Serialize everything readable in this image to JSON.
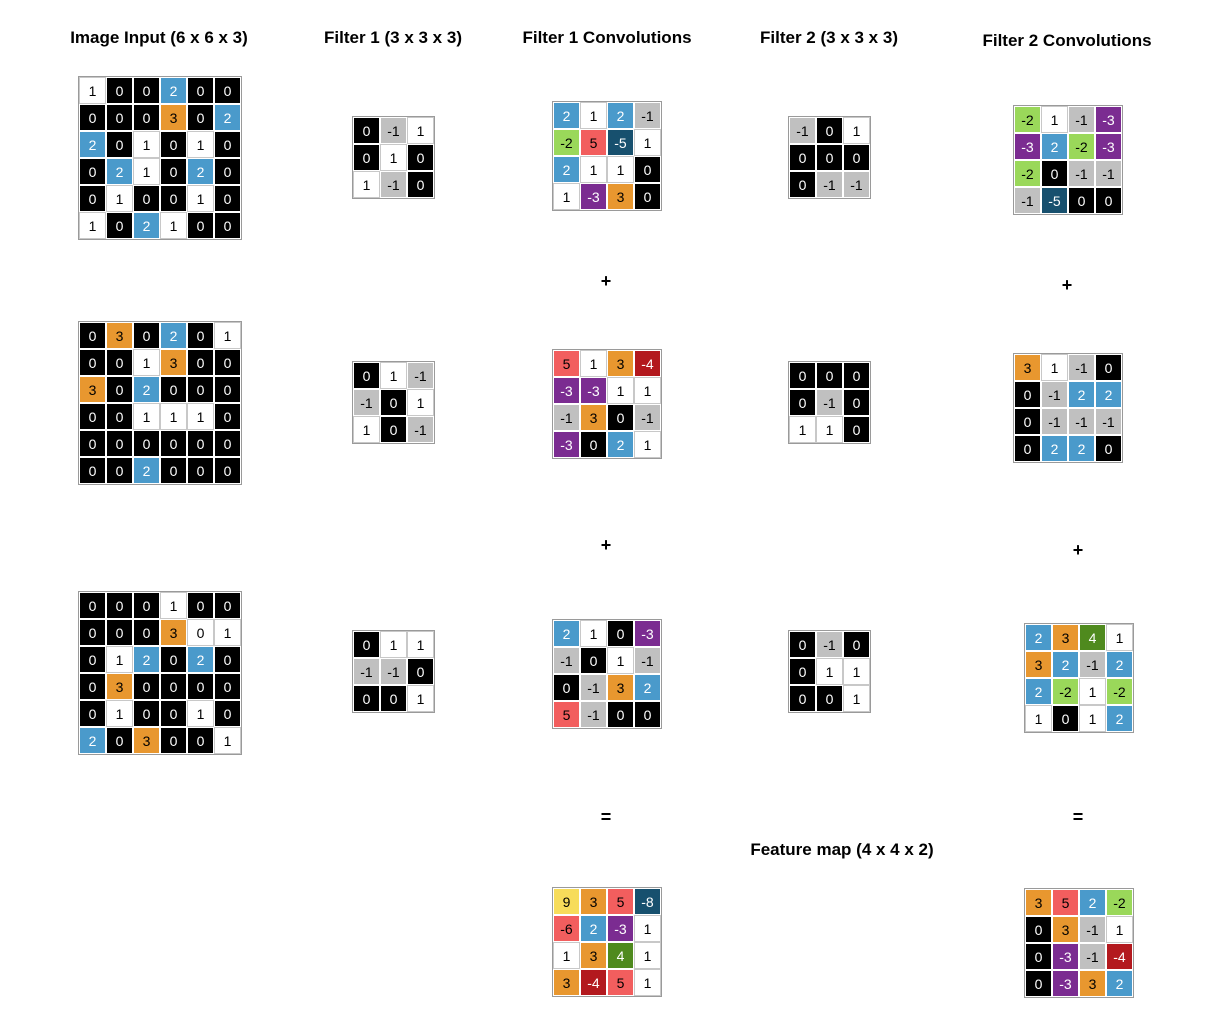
{
  "titles": {
    "input": "Image Input (6 x 6 x 3)",
    "filter1": "Filter 1 (3 x 3 x 3)",
    "conv1": "Filter 1 Convolutions",
    "filter2": "Filter 2 (3 x 3 x 3)",
    "conv2": "Filter 2 Convolutions",
    "feature": "Feature map (4 x 4 x 2)"
  },
  "operators": {
    "plus": "+",
    "equals": "="
  },
  "palette": {
    "black": "#000000",
    "white": "#ffffff",
    "gray": "#c0c0c0",
    "blue": "#4a9acb",
    "orange": "#e8972f",
    "purple": "#7b2c91",
    "lime": "#9ad85a",
    "red": "#f25e5e",
    "navy": "#17506e",
    "darkred": "#b3191e",
    "green": "#4f8a1e",
    "yellow": "#f7dc5a"
  },
  "matrices": {
    "input1": [
      [
        "1",
        "0",
        "0",
        "2",
        "0",
        "0"
      ],
      [
        "0",
        "0",
        "0",
        "3",
        "0",
        "2"
      ],
      [
        "2",
        "0",
        "1",
        "0",
        "1",
        "0"
      ],
      [
        "0",
        "2",
        "1",
        "0",
        "2",
        "0"
      ],
      [
        "0",
        "1",
        "0",
        "0",
        "1",
        "0"
      ],
      [
        "1",
        "0",
        "2",
        "1",
        "0",
        "0"
      ]
    ],
    "input2": [
      [
        "0",
        "3",
        "0",
        "2",
        "0",
        "1"
      ],
      [
        "0",
        "0",
        "1",
        "3",
        "0",
        "0"
      ],
      [
        "3",
        "0",
        "2",
        "0",
        "0",
        "0"
      ],
      [
        "0",
        "0",
        "1",
        "1",
        "1",
        "0"
      ],
      [
        "0",
        "0",
        "0",
        "0",
        "0",
        "0"
      ],
      [
        "0",
        "0",
        "2",
        "0",
        "0",
        "0"
      ]
    ],
    "input3": [
      [
        "0",
        "0",
        "0",
        "1",
        "0",
        "0"
      ],
      [
        "0",
        "0",
        "0",
        "3",
        "0",
        "1"
      ],
      [
        "0",
        "1",
        "2",
        "0",
        "2",
        "0"
      ],
      [
        "0",
        "3",
        "0",
        "0",
        "0",
        "0"
      ],
      [
        "0",
        "1",
        "0",
        "0",
        "1",
        "0"
      ],
      [
        "2",
        "0",
        "3",
        "0",
        "0",
        "1"
      ]
    ],
    "filter1a": [
      [
        "0",
        "-1",
        "1"
      ],
      [
        "0",
        "1",
        "0"
      ],
      [
        "1",
        "-1",
        "0"
      ]
    ],
    "filter1b": [
      [
        "0",
        "1",
        "-1"
      ],
      [
        "-1",
        "0",
        "1"
      ],
      [
        "1",
        "0",
        "-1"
      ]
    ],
    "filter1c": [
      [
        "0",
        "1",
        "1"
      ],
      [
        "-1",
        "-1",
        "0"
      ],
      [
        "0",
        "0",
        "1"
      ]
    ],
    "conv1a": [
      [
        "2",
        "1",
        "2",
        "-1"
      ],
      [
        "-2",
        "5",
        "-5",
        "1"
      ],
      [
        "2",
        "1",
        "1",
        "0"
      ],
      [
        "1",
        "-3",
        "3",
        "0"
      ]
    ],
    "conv1b": [
      [
        "5",
        "1",
        "3",
        "-4"
      ],
      [
        "-3",
        "-3",
        "1",
        "1"
      ],
      [
        "-1",
        "3",
        "0",
        "-1"
      ],
      [
        "-3",
        "0",
        "2",
        "1"
      ]
    ],
    "conv1c": [
      [
        "2",
        "1",
        "0",
        "-3"
      ],
      [
        "-1",
        "0",
        "1",
        "-1"
      ],
      [
        "0",
        "-1",
        "3",
        "2"
      ],
      [
        "5",
        "-1",
        "0",
        "0"
      ]
    ],
    "feature1": [
      [
        "9",
        "3",
        "5",
        "-8"
      ],
      [
        "-6",
        "2",
        "-3",
        "1"
      ],
      [
        "1",
        "3",
        "4",
        "1"
      ],
      [
        "3",
        "-4",
        "5",
        "1"
      ]
    ],
    "filter2a": [
      [
        "-1",
        "0",
        "1"
      ],
      [
        "0",
        "0",
        "0"
      ],
      [
        "0",
        "-1",
        "-1"
      ]
    ],
    "filter2b": [
      [
        "0",
        "0",
        "0"
      ],
      [
        "0",
        "-1",
        "0"
      ],
      [
        "1",
        "1",
        "0"
      ]
    ],
    "filter2c": [
      [
        "0",
        "-1",
        "0"
      ],
      [
        "0",
        "1",
        "1"
      ],
      [
        "0",
        "0",
        "1"
      ]
    ],
    "conv2a": [
      [
        "-2",
        "1",
        "-1",
        "-3"
      ],
      [
        "-3",
        "2",
        "-2",
        "-3"
      ],
      [
        "-2",
        "0",
        "-1",
        "-1"
      ],
      [
        "-1",
        "-5",
        "0",
        "0"
      ]
    ],
    "conv2b": [
      [
        "3",
        "1",
        "-1",
        "0"
      ],
      [
        "0",
        "-1",
        "2",
        "2"
      ],
      [
        "0",
        "-1",
        "-1",
        "-1"
      ],
      [
        "0",
        "2",
        "2",
        "0"
      ]
    ],
    "conv2c": [
      [
        "2",
        "3",
        "4",
        "1"
      ],
      [
        "3",
        "2",
        "-1",
        "2"
      ],
      [
        "2",
        "-2",
        "1",
        "-2"
      ],
      [
        "1",
        "0",
        "1",
        "2"
      ]
    ],
    "feature2": [
      [
        "3",
        "5",
        "2",
        "-2"
      ],
      [
        "0",
        "3",
        "-1",
        "1"
      ],
      [
        "0",
        "-3",
        "-1",
        "-4"
      ],
      [
        "0",
        "-3",
        "3",
        "2"
      ]
    ]
  },
  "cell_colors": {
    "input1": [
      [
        "white",
        "black",
        "black",
        "blue",
        "black",
        "black"
      ],
      [
        "black",
        "black",
        "black",
        "orange",
        "black",
        "blue"
      ],
      [
        "blue",
        "black",
        "white",
        "black",
        "white",
        "black"
      ],
      [
        "black",
        "blue",
        "white",
        "black",
        "blue",
        "black"
      ],
      [
        "black",
        "white",
        "black",
        "black",
        "white",
        "black"
      ],
      [
        "white",
        "black",
        "blue",
        "white",
        "black",
        "black"
      ]
    ],
    "input2": [
      [
        "black",
        "orange",
        "black",
        "blue",
        "black",
        "white"
      ],
      [
        "black",
        "black",
        "white",
        "orange",
        "black",
        "black"
      ],
      [
        "orange",
        "black",
        "blue",
        "black",
        "black",
        "black"
      ],
      [
        "black",
        "black",
        "white",
        "white",
        "white",
        "black"
      ],
      [
        "black",
        "black",
        "black",
        "black",
        "black",
        "black"
      ],
      [
        "black",
        "black",
        "blue",
        "black",
        "black",
        "black"
      ]
    ],
    "input3": [
      [
        "black",
        "black",
        "black",
        "white",
        "black",
        "black"
      ],
      [
        "black",
        "black",
        "black",
        "orange",
        "white",
        "white"
      ],
      [
        "black",
        "white",
        "blue",
        "black",
        "blue",
        "black"
      ],
      [
        "black",
        "orange",
        "black",
        "black",
        "black",
        "black"
      ],
      [
        "black",
        "white",
        "black",
        "black",
        "white",
        "black"
      ],
      [
        "blue",
        "black",
        "orange",
        "black",
        "black",
        "white"
      ]
    ],
    "filter1a": [
      [
        "black",
        "gray",
        "white"
      ],
      [
        "black",
        "white",
        "black"
      ],
      [
        "white",
        "gray",
        "black"
      ]
    ],
    "filter1b": [
      [
        "black",
        "white",
        "gray"
      ],
      [
        "gray",
        "black",
        "white"
      ],
      [
        "white",
        "black",
        "gray"
      ]
    ],
    "filter1c": [
      [
        "black",
        "white",
        "white"
      ],
      [
        "gray",
        "gray",
        "black"
      ],
      [
        "black",
        "black",
        "white"
      ]
    ],
    "conv1a": [
      [
        "blue",
        "white",
        "blue",
        "gray"
      ],
      [
        "lime",
        "red",
        "navy",
        "white"
      ],
      [
        "blue",
        "white",
        "white",
        "black"
      ],
      [
        "white",
        "purple",
        "orange",
        "black"
      ]
    ],
    "conv1b": [
      [
        "red",
        "white",
        "orange",
        "darkred"
      ],
      [
        "purple",
        "purple",
        "white",
        "white"
      ],
      [
        "gray",
        "orange",
        "black",
        "gray"
      ],
      [
        "purple",
        "black",
        "blue",
        "white"
      ]
    ],
    "conv1c": [
      [
        "blue",
        "white",
        "black",
        "purple"
      ],
      [
        "gray",
        "black",
        "white",
        "gray"
      ],
      [
        "black",
        "gray",
        "orange",
        "blue"
      ],
      [
        "red",
        "gray",
        "black",
        "black"
      ]
    ],
    "feature1": [
      [
        "yellow",
        "orange",
        "red",
        "navy"
      ],
      [
        "red",
        "blue",
        "purple",
        "white"
      ],
      [
        "white",
        "orange",
        "green",
        "white"
      ],
      [
        "orange",
        "darkred",
        "red",
        "white"
      ]
    ],
    "filter2a": [
      [
        "gray",
        "black",
        "white"
      ],
      [
        "black",
        "black",
        "black"
      ],
      [
        "black",
        "gray",
        "gray"
      ]
    ],
    "filter2b": [
      [
        "black",
        "black",
        "black"
      ],
      [
        "black",
        "gray",
        "black"
      ],
      [
        "white",
        "white",
        "black"
      ]
    ],
    "filter2c": [
      [
        "black",
        "gray",
        "black"
      ],
      [
        "black",
        "white",
        "white"
      ],
      [
        "black",
        "black",
        "white"
      ]
    ],
    "conv2a": [
      [
        "lime",
        "white",
        "gray",
        "purple"
      ],
      [
        "purple",
        "blue",
        "lime",
        "purple"
      ],
      [
        "lime",
        "black",
        "gray",
        "gray"
      ],
      [
        "gray",
        "navy",
        "black",
        "black"
      ]
    ],
    "conv2b": [
      [
        "orange",
        "white",
        "gray",
        "black"
      ],
      [
        "black",
        "gray",
        "blue",
        "blue"
      ],
      [
        "black",
        "gray",
        "gray",
        "gray"
      ],
      [
        "black",
        "blue",
        "blue",
        "black"
      ]
    ],
    "conv2c": [
      [
        "blue",
        "orange",
        "green",
        "white"
      ],
      [
        "orange",
        "blue",
        "gray",
        "blue"
      ],
      [
        "blue",
        "lime",
        "white",
        "lime"
      ],
      [
        "white",
        "black",
        "white",
        "blue"
      ]
    ],
    "feature2": [
      [
        "orange",
        "red",
        "blue",
        "lime"
      ],
      [
        "black",
        "orange",
        "gray",
        "white"
      ],
      [
        "black",
        "purple",
        "gray",
        "darkred"
      ],
      [
        "black",
        "purple",
        "orange",
        "blue"
      ]
    ]
  }
}
